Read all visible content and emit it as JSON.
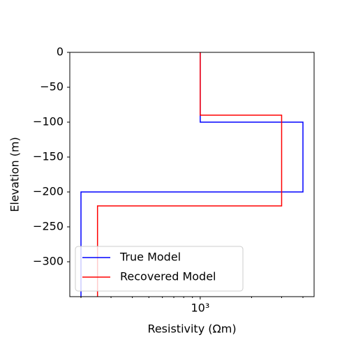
{
  "chart_data": {
    "type": "line",
    "xlabel": "Resistivity (Ωm)",
    "ylabel": "Elevation (m)",
    "xscale": "log",
    "xlim": [
      172,
      4650
    ],
    "ylim": [
      -350,
      0
    ],
    "xticks": [
      {
        "value": 1000,
        "label": "10³"
      }
    ],
    "xminor_ticks": [
      200,
      300,
      400,
      500,
      600,
      700,
      800,
      900,
      2000,
      3000,
      4000
    ],
    "yticks": [
      0,
      {
        "value": -50,
        "label": "−50"
      },
      {
        "value": -100,
        "label": "−100"
      },
      {
        "value": -150,
        "label": "−150"
      },
      {
        "value": -200,
        "label": "−200"
      },
      {
        "value": -250,
        "label": "−250"
      },
      {
        "value": -300,
        "label": "−300"
      }
    ],
    "legend": "lower left",
    "series": [
      {
        "name": "True Model",
        "color": "#0000ff",
        "x": [
          1000,
          1000,
          4000,
          4000,
          200,
          200
        ],
        "values": [
          0,
          -100,
          -100,
          -200,
          -200,
          -350
        ]
      },
      {
        "name": "Recovered Model",
        "color": "#ff0000",
        "x": [
          1000,
          1000,
          3000,
          3000,
          250,
          250
        ],
        "values": [
          0,
          -90,
          -90,
          -220,
          -220,
          -350
        ]
      }
    ]
  }
}
